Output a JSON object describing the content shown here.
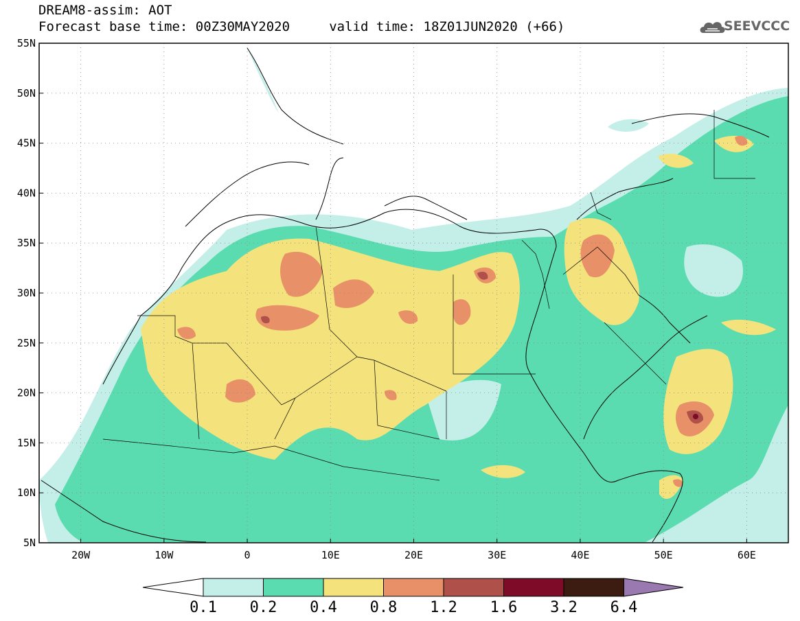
{
  "title": {
    "line1": "DREAM8-assim: AOT",
    "line2": "Forecast base time: 00Z30MAY2020     valid time: 18Z01JUN2020 (+66)"
  },
  "logo": {
    "text": "SEEVCCC",
    "icon": "cloud-icon"
  },
  "map": {
    "lon_range": [
      -25,
      65
    ],
    "lat_range": [
      5,
      55
    ],
    "x_ticks": [
      "20W",
      "10W",
      "0",
      "10E",
      "20E",
      "30E",
      "40E",
      "50E",
      "60E"
    ],
    "y_ticks": [
      "55N",
      "50N",
      "45N",
      "40N",
      "35N",
      "30N",
      "25N",
      "20N",
      "15N",
      "10N",
      "5N"
    ],
    "gridlines": "dotted"
  },
  "colorbar": {
    "labels": [
      "0.1",
      "0.2",
      "0.4",
      "0.8",
      "1.2",
      "1.6",
      "3.2",
      "6.4"
    ],
    "colors": [
      "#c4efe8",
      "#5bdcb0",
      "#f4e37c",
      "#e89068",
      "#b0504a",
      "#7e0c28",
      "#3c1c10",
      "#9a78b0"
    ],
    "low_arrow_color": "#ffffff",
    "high_arrow_color": "#9a78b0"
  }
}
